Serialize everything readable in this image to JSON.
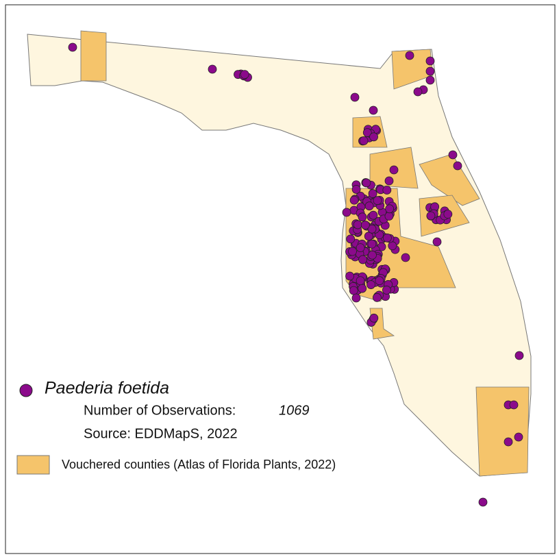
{
  "legend": {
    "species": "Paederia foetida",
    "observations_label": "Number of Observations:",
    "observations": 1069,
    "source": "Source: EDDMapS, 2022",
    "vouchered": "Vouchered counties (Atlas of Florida Plants, 2022)"
  }
}
